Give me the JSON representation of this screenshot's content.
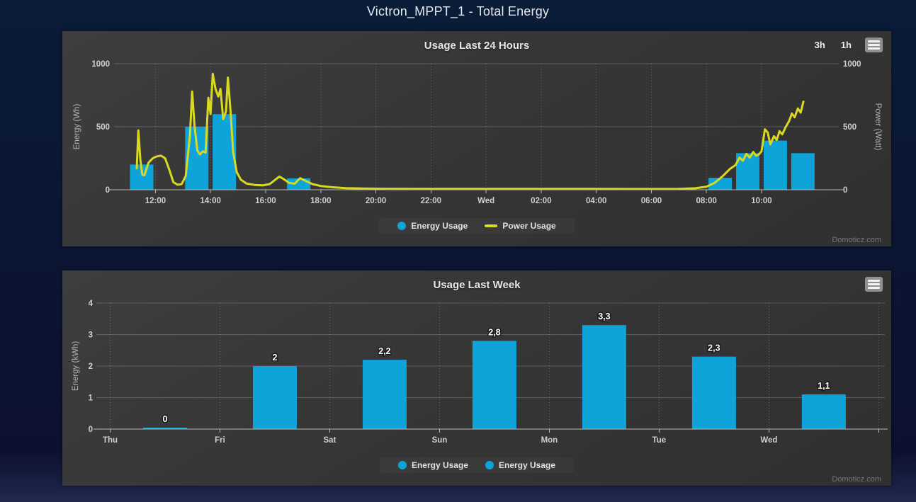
{
  "page": {
    "title": "Victron_MPPT_1 - Total Energy"
  },
  "colors": {
    "energy_blue": "#0fa4d9",
    "power_yellow": "#d9d920",
    "panel_bg": "#363636",
    "page_bg": "#0c1130",
    "tick_text": "#cfcfcf"
  },
  "chart_data": [
    {
      "type": "bar",
      "title": "Usage Last 24 Hours",
      "ylabel_left": "Energy (Wh)",
      "ylabel_right": "Power (Watt)",
      "ylim": [
        0,
        1000
      ],
      "y_ticks": [
        0,
        500,
        1000
      ],
      "x_ticks": [
        {
          "h": 12,
          "label": "12:00"
        },
        {
          "h": 14,
          "label": "14:00"
        },
        {
          "h": 16,
          "label": "16:00"
        },
        {
          "h": 18,
          "label": "18:00"
        },
        {
          "h": 20,
          "label": "20:00"
        },
        {
          "h": 22,
          "label": "22:00"
        },
        {
          "h": 24,
          "label": "Wed"
        },
        {
          "h": 26,
          "label": "02:00"
        },
        {
          "h": 28,
          "label": "04:00"
        },
        {
          "h": 30,
          "label": "06:00"
        },
        {
          "h": 32,
          "label": "08:00"
        },
        {
          "h": 34,
          "label": "10:00"
        }
      ],
      "x_range_hours": [
        10.6,
        36.7
      ],
      "series": [
        {
          "name": "Energy Usage",
          "type": "bar",
          "color": "#0fa4d9",
          "unit": "Wh",
          "points": [
            [
              11.5,
              200
            ],
            [
              13.5,
              500
            ],
            [
              14.5,
              600
            ],
            [
              17.2,
              90
            ],
            [
              32.5,
              95
            ],
            [
              33.5,
              290
            ],
            [
              34.5,
              390
            ],
            [
              35.5,
              290
            ]
          ]
        },
        {
          "name": "Power Usage",
          "type": "line",
          "color": "#d9d920",
          "unit": "Watt",
          "points": [
            [
              11.32,
              170
            ],
            [
              11.38,
              470
            ],
            [
              11.45,
              240
            ],
            [
              11.52,
              120
            ],
            [
              11.6,
              115
            ],
            [
              11.75,
              215
            ],
            [
              11.9,
              250
            ],
            [
              12.05,
              265
            ],
            [
              12.2,
              270
            ],
            [
              12.35,
              250
            ],
            [
              12.5,
              160
            ],
            [
              12.65,
              60
            ],
            [
              12.8,
              40
            ],
            [
              12.95,
              45
            ],
            [
              13.1,
              110
            ],
            [
              13.25,
              430
            ],
            [
              13.33,
              780
            ],
            [
              13.42,
              500
            ],
            [
              13.52,
              310
            ],
            [
              13.62,
              280
            ],
            [
              13.72,
              305
            ],
            [
              13.82,
              295
            ],
            [
              13.92,
              730
            ],
            [
              14.0,
              600
            ],
            [
              14.08,
              920
            ],
            [
              14.18,
              800
            ],
            [
              14.28,
              740
            ],
            [
              14.36,
              800
            ],
            [
              14.46,
              560
            ],
            [
              14.56,
              620
            ],
            [
              14.63,
              890
            ],
            [
              14.72,
              640
            ],
            [
              14.82,
              300
            ],
            [
              14.95,
              140
            ],
            [
              15.1,
              80
            ],
            [
              15.3,
              50
            ],
            [
              15.6,
              38
            ],
            [
              15.9,
              35
            ],
            [
              16.15,
              45
            ],
            [
              16.35,
              80
            ],
            [
              16.5,
              105
            ],
            [
              16.65,
              85
            ],
            [
              16.85,
              55
            ],
            [
              17.05,
              48
            ],
            [
              17.25,
              92
            ],
            [
              17.45,
              70
            ],
            [
              17.7,
              45
            ],
            [
              18.0,
              30
            ],
            [
              18.4,
              20
            ],
            [
              18.9,
              13
            ],
            [
              19.5,
              10
            ],
            [
              20.5,
              8
            ],
            [
              22,
              7
            ],
            [
              24,
              7
            ],
            [
              26,
              7
            ],
            [
              28,
              7
            ],
            [
              30,
              6
            ],
            [
              31,
              7
            ],
            [
              31.6,
              12
            ],
            [
              32.0,
              25
            ],
            [
              32.3,
              55
            ],
            [
              32.6,
              110
            ],
            [
              32.85,
              165
            ],
            [
              33.05,
              195
            ],
            [
              33.2,
              255
            ],
            [
              33.32,
              230
            ],
            [
              33.45,
              285
            ],
            [
              33.57,
              255
            ],
            [
              33.7,
              300
            ],
            [
              33.8,
              270
            ],
            [
              33.9,
              280
            ],
            [
              34.0,
              305
            ],
            [
              34.12,
              480
            ],
            [
              34.22,
              455
            ],
            [
              34.32,
              360
            ],
            [
              34.45,
              425
            ],
            [
              34.55,
              395
            ],
            [
              34.65,
              465
            ],
            [
              34.75,
              440
            ],
            [
              34.88,
              500
            ],
            [
              35.0,
              545
            ],
            [
              35.1,
              605
            ],
            [
              35.2,
              575
            ],
            [
              35.32,
              645
            ],
            [
              35.42,
              612
            ],
            [
              35.52,
              700
            ]
          ]
        }
      ],
      "legend": [
        {
          "label": "Energy Usage",
          "marker": "circle",
          "color": "#0fa4d9"
        },
        {
          "label": "Power Usage",
          "marker": "line",
          "color": "#d9d920"
        }
      ],
      "toolbar_buttons": [
        "3h",
        "1h"
      ],
      "watermark": "Domoticz.com"
    },
    {
      "type": "bar",
      "title": "Usage Last Week",
      "ylabel": "Energy (kWh)",
      "ylim": [
        0,
        4
      ],
      "y_ticks": [
        0,
        1,
        2,
        3,
        4
      ],
      "categories": [
        "Thu",
        "Fri",
        "Sat",
        "Sun",
        "Mon",
        "Tue",
        "Wed"
      ],
      "values": [
        0,
        2,
        2.2,
        2.8,
        3.3,
        2.3,
        1.1
      ],
      "value_labels": [
        "0",
        "2",
        "2,2",
        "2,8",
        "3,3",
        "2,3",
        "1,1"
      ],
      "bar_color": "#0fa4d9",
      "legend": [
        {
          "label": "Energy Usage",
          "marker": "circle",
          "color": "#0fa4d9"
        },
        {
          "label": "Energy Usage",
          "marker": "circle",
          "color": "#0fa4d9"
        }
      ],
      "watermark": "Domoticz.com"
    }
  ]
}
